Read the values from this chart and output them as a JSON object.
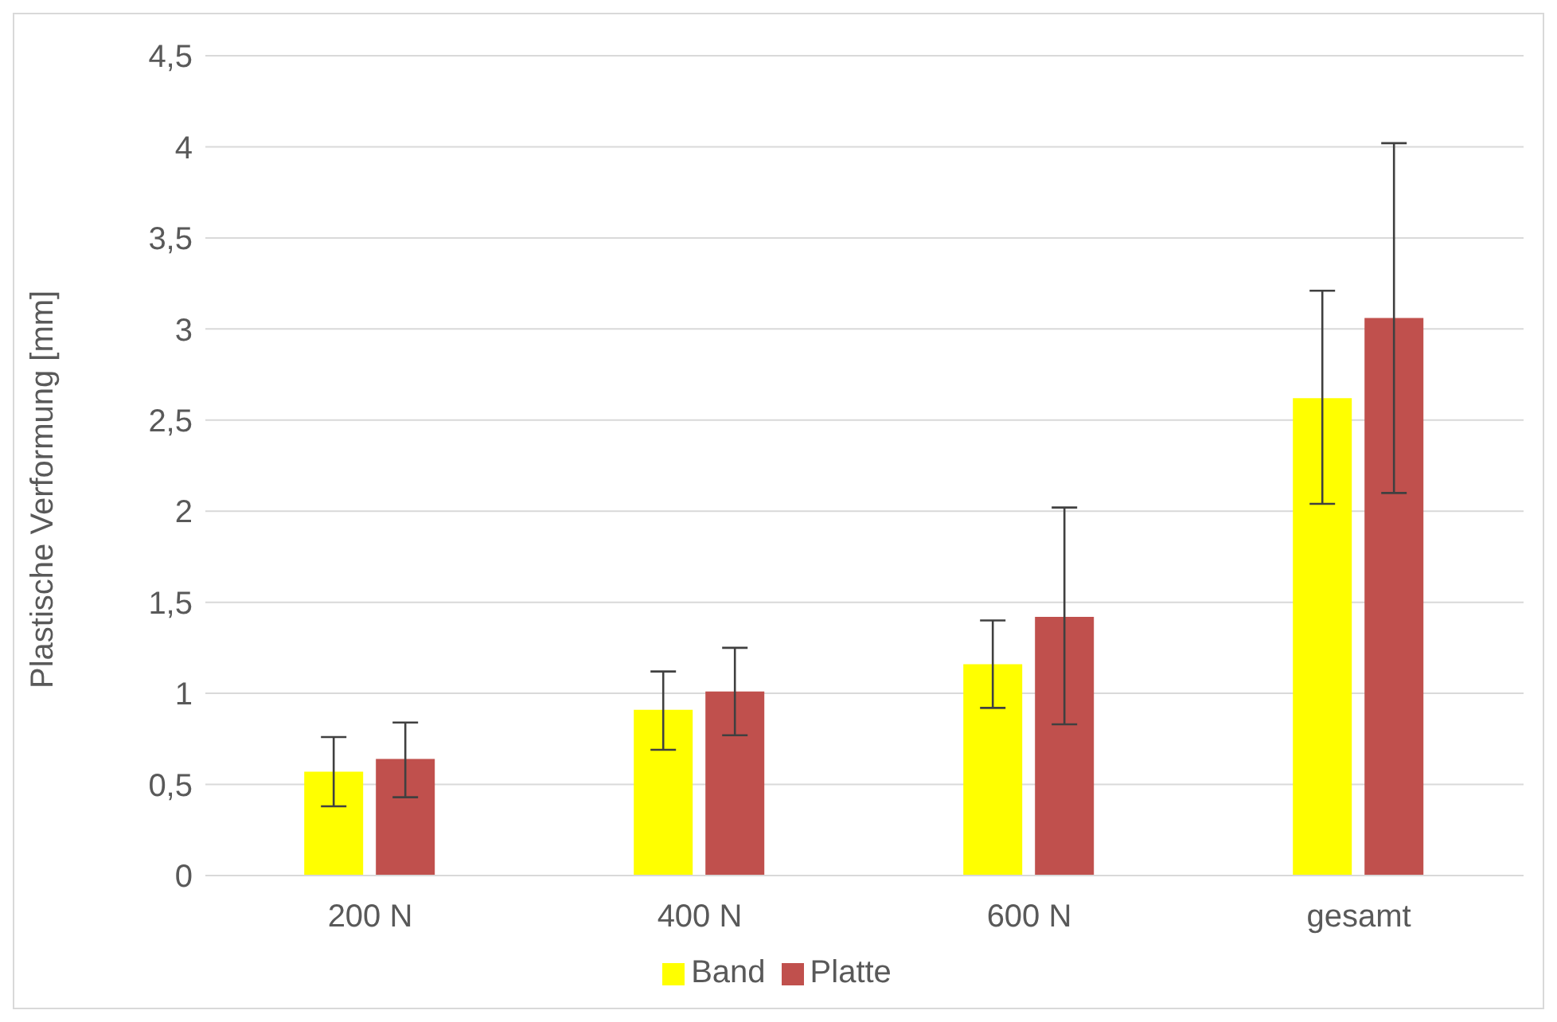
{
  "chart_data": {
    "type": "bar",
    "ylabel": "Plastische Verformung [mm]",
    "categories": [
      "200 N",
      "400 N",
      "600 N",
      "gesamt"
    ],
    "series": [
      {
        "name": "Band",
        "color": "#ffff00",
        "values": [
          0.57,
          0.91,
          1.16,
          2.62
        ],
        "errors": [
          [
            0.38,
            0.76
          ],
          [
            0.69,
            1.12
          ],
          [
            0.92,
            1.4
          ],
          [
            2.04,
            3.21
          ]
        ]
      },
      {
        "name": "Platte",
        "color": "#c0504d",
        "values": [
          0.64,
          1.01,
          1.42,
          3.06
        ],
        "errors": [
          [
            0.43,
            0.84
          ],
          [
            0.77,
            1.25
          ],
          [
            0.83,
            2.02
          ],
          [
            2.1,
            4.02
          ]
        ]
      }
    ],
    "ylim": [
      0,
      4.5
    ],
    "yticks": [
      0,
      {
        "value": 0.5,
        "label": "0,5"
      },
      1,
      {
        "value": 1.5,
        "label": "1,5"
      },
      2,
      {
        "value": 2.5,
        "label": "2,5"
      },
      3,
      {
        "value": 3.5,
        "label": "3,5"
      },
      4,
      {
        "value": 4.5,
        "label": "4,5"
      }
    ],
    "grid": "y",
    "legend": "bottom"
  }
}
